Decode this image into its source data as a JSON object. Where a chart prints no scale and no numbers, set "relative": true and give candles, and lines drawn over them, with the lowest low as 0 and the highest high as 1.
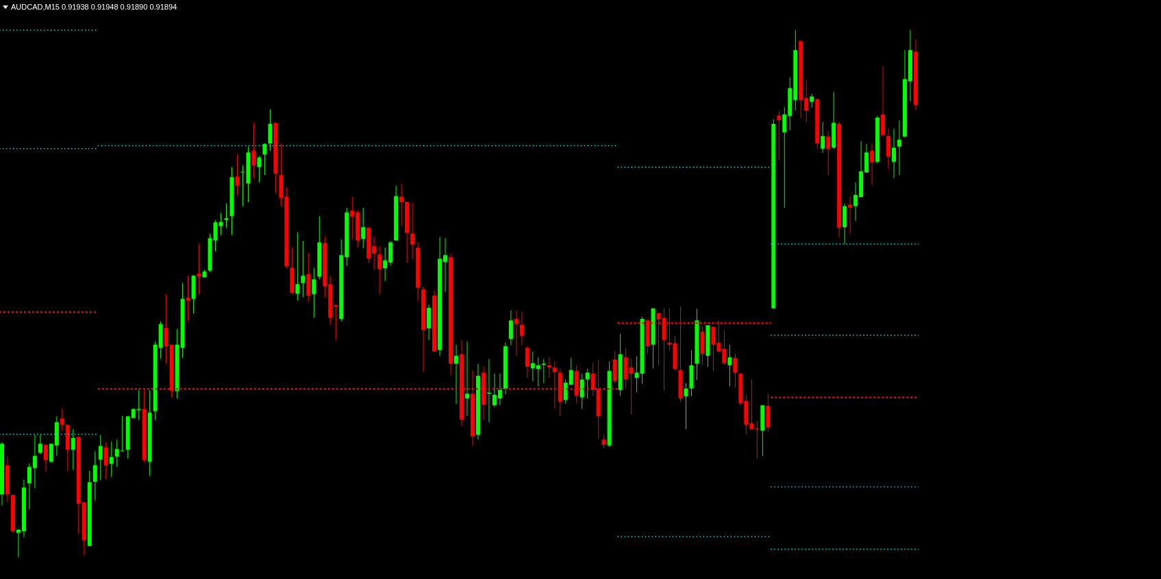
{
  "chart_data": {
    "type": "candlestick",
    "title": "AUDCAD,M15 0.91938 0.91948 0.91890 0.91894",
    "relative": true,
    "categories": [
      null,
      null,
      null,
      null,
      null,
      null,
      null,
      null,
      null,
      null,
      null,
      null,
      null,
      null,
      null,
      null,
      null,
      null,
      null,
      null,
      null,
      null,
      null,
      null,
      null,
      null,
      null,
      null,
      null,
      null,
      null,
      null,
      null,
      null,
      null,
      null,
      null,
      null,
      null,
      null,
      null,
      null,
      null,
      null,
      null,
      null,
      null,
      null,
      null,
      null,
      null,
      null,
      null,
      null,
      null,
      null,
      null,
      null,
      null,
      null,
      null,
      null,
      null,
      null,
      null,
      null,
      null,
      null,
      null,
      null,
      null,
      null,
      null,
      null,
      null,
      null,
      null,
      null,
      null,
      null,
      null,
      null,
      null,
      null,
      null,
      null,
      null,
      null,
      null,
      null,
      null,
      null,
      null,
      null,
      null,
      null,
      null,
      null,
      null,
      null,
      null,
      null,
      null,
      null,
      null,
      null,
      null,
      null,
      null,
      null,
      null,
      null,
      null,
      null,
      null,
      null,
      null,
      null,
      null,
      null,
      null,
      null,
      null,
      null,
      null,
      null,
      null,
      null,
      null,
      null,
      null,
      null,
      null,
      null,
      null,
      null,
      null,
      null,
      null,
      null,
      null,
      null,
      null,
      null,
      null,
      null,
      null,
      null,
      null,
      null,
      null,
      null,
      null,
      null,
      null,
      null,
      null,
      null,
      null,
      null,
      null,
      null,
      null,
      null,
      null,
      null,
      null,
      null
    ],
    "colors": [
      "#00ff00",
      "#ff0000",
      "#ff0000",
      "#00ff00",
      "#00ff00",
      "#00ff00",
      "#00ff00",
      "#00ff00",
      "#ff0000",
      "#00ff00",
      "#00ff00",
      "#ff0000",
      "#ff0000",
      "#00ff00",
      "#ff0000",
      "#ff0000",
      "#00ff00",
      "#00ff00",
      "#00ff00",
      "#ff0000",
      "#00ff00",
      "#00ff00",
      "#00ff00",
      "#00ff00",
      "#00ff00",
      "#00ff00",
      "#ff0000",
      "#00ff00",
      "#00ff00",
      "#00ff00",
      "#ff0000",
      "#ff0000",
      "#00ff00",
      "#00ff00",
      "#ff0000",
      "#00ff00",
      "#ff0000",
      "#00ff00",
      "#00ff00",
      "#00ff00",
      "#00ff00",
      "#00ff00",
      "#00ff00",
      "#ff0000",
      "#00ff00",
      "#00ff00",
      "#ff0000",
      "#00ff00",
      "#00ff00",
      "#00ff00",
      "#ff0000",
      "#ff0000",
      "#ff0000",
      "#ff0000",
      "#00ff00",
      "#00ff00",
      "#ff0000",
      "#00ff00",
      "#00ff00",
      "#ff0000",
      "#ff0000",
      "#ff0000",
      "#00ff00",
      "#00ff00",
      "#ff0000",
      "#ff0000",
      "#00ff00",
      "#ff0000",
      "#ff0000",
      "#ff0000",
      "#00ff00",
      "#00ff00",
      "#00ff00",
      "#ff0000",
      "#ff0000",
      "#ff0000",
      "#ff0000",
      "#ff0000",
      "#00ff00",
      "#ff0000",
      "#00ff00",
      "#00ff00",
      "#ff0000",
      "#00ff00",
      "#ff0000",
      "#00ff00",
      "#ff0000",
      "#00ff00",
      "#ff0000",
      "#00ff00",
      "#00ff00",
      "#00ff00",
      "#00ff00",
      "#00ff00",
      "#ff0000",
      "#ff0000",
      "#ff0000",
      "#00ff00",
      "#00ff00",
      "#00ff00",
      "#ff0000",
      "#ff0000",
      "#ff0000",
      "#00ff00",
      "#00ff00",
      "#ff0000",
      "#00ff00",
      "#00ff00",
      "#ff0000",
      "#ff0000",
      "#ff0000",
      "#00ff00",
      "#ff0000",
      "#00ff00",
      "#ff0000",
      "#ff0000",
      "#00ff00",
      "#00ff00",
      "#ff0000",
      "#00ff00",
      "#ff0000",
      "#ff0000",
      "#ff0000",
      "#ff0000",
      "#ff0000",
      "#00ff00",
      "#00ff00",
      "#00ff00",
      "#ff0000",
      "#00ff00",
      "#ff0000",
      "#ff0000",
      "#ff0000",
      "#00ff00",
      "#ff0000",
      "#ff0000",
      "#ff0000",
      "#ff0000",
      "#ff0000",
      "#00ff00",
      "#ff0000",
      "#00ff00",
      "#ff0000",
      "#00ff00",
      "#00ff00",
      "#00ff00",
      "#ff0000",
      "#ff0000",
      "#00ff00",
      "#ff0000",
      "#00ff00",
      "#ff0000",
      "#00ff00",
      "#ff0000",
      "#00ff00",
      "#ff0000",
      "#00ff00",
      "#00ff00",
      "#00ff00",
      "#ff0000",
      "#00ff00",
      "#ff0000",
      "#ff0000",
      "#00ff00",
      "#00ff00",
      "#00ff00",
      "#00ff00",
      "#ff0000"
    ],
    "ohlc": [
      [
        0.119,
        0.218,
        0.098,
        0.215
      ],
      [
        0.174,
        0.191,
        0.104,
        0.119
      ],
      [
        0.118,
        0.118,
        0.046,
        0.049
      ],
      [
        0.046,
        0.053,
        0,
        0.052
      ],
      [
        0.049,
        0.147,
        0.038,
        0.132
      ],
      [
        0.14,
        0.178,
        0.091,
        0.171
      ],
      [
        0.169,
        0.232,
        0.131,
        0.192
      ],
      [
        0.198,
        0.232,
        0.195,
        0.215
      ],
      [
        0.213,
        0.213,
        0.162,
        0.184
      ],
      [
        0.181,
        0.215,
        0.18,
        0.215
      ],
      [
        0.212,
        0.267,
        0.192,
        0.256
      ],
      [
        0.263,
        0.282,
        0.239,
        0.251
      ],
      [
        0.251,
        0.251,
        0.163,
        0.204
      ],
      [
        0.204,
        0.243,
        0.166,
        0.226
      ],
      [
        0.228,
        0.228,
        0.044,
        0.101
      ],
      [
        0.104,
        0.104,
        0.004,
        0.032
      ],
      [
        0.021,
        0.164,
        0.021,
        0.142
      ],
      [
        0.143,
        0.201,
        0.107,
        0.174
      ],
      [
        0.185,
        0.232,
        0.146,
        0.211
      ],
      [
        0.208,
        0.218,
        0.147,
        0.174
      ],
      [
        0.177,
        0.219,
        0.152,
        0.19
      ],
      [
        0.191,
        0.223,
        0.171,
        0.205
      ],
      [
        0.201,
        0.268,
        0.201,
        0.202
      ],
      [
        0.204,
        0.268,
        0.187,
        0.267
      ],
      [
        0.264,
        0.282,
        0.264,
        0.281
      ],
      [
        0.279,
        0.317,
        0.26,
        0.281
      ],
      [
        0.281,
        0.317,
        0.18,
        0.184
      ],
      [
        0.181,
        0.317,
        0.154,
        0.274
      ],
      [
        0.277,
        0.409,
        0.26,
        0.403
      ],
      [
        0.397,
        0.447,
        0.376,
        0.442
      ],
      [
        0.435,
        0.5,
        0.367,
        0.4
      ],
      [
        0.403,
        0.403,
        0.303,
        0.316
      ],
      [
        0.315,
        0.433,
        0.301,
        0.403
      ],
      [
        0.397,
        0.52,
        0.378,
        0.49
      ],
      [
        0.492,
        0.534,
        0.448,
        0.487
      ],
      [
        0.49,
        0.535,
        0.462,
        0.534
      ],
      [
        0.538,
        0.594,
        0.499,
        0.532
      ],
      [
        0.531,
        0.545,
        0.531,
        0.542
      ],
      [
        0.544,
        0.614,
        0.541,
        0.605
      ],
      [
        0.601,
        0.639,
        0.58,
        0.635
      ],
      [
        0.628,
        0.653,
        0.611,
        0.636
      ],
      [
        0.64,
        0.671,
        0.625,
        0.643
      ],
      [
        0.647,
        0.74,
        0.611,
        0.721
      ],
      [
        0.722,
        0.764,
        0.687,
        0.705
      ],
      [
        0.73,
        0.743,
        0.666,
        0.731
      ],
      [
        0.709,
        0.779,
        0.674,
        0.768
      ],
      [
        0.771,
        0.824,
        0.719,
        0.743
      ],
      [
        0.74,
        0.761,
        0.711,
        0.758
      ],
      [
        0.764,
        0.785,
        0.725,
        0.784
      ],
      [
        0.785,
        0.85,
        0.771,
        0.822
      ],
      [
        0.824,
        0.824,
        0.691,
        0.728
      ],
      [
        0.725,
        0.785,
        0.666,
        0.681
      ],
      [
        0.684,
        0.702,
        0.548,
        0.552
      ],
      [
        0.549,
        0.587,
        0.499,
        0.501
      ],
      [
        0.5,
        0.617,
        0.487,
        0.518
      ],
      [
        0.52,
        0.6,
        0.493,
        0.534
      ],
      [
        0.537,
        0.577,
        0.485,
        0.496
      ],
      [
        0.499,
        0.549,
        0.454,
        0.527
      ],
      [
        0.532,
        0.647,
        0.527,
        0.597
      ],
      [
        0.596,
        0.608,
        0.493,
        0.514
      ],
      [
        0.518,
        0.534,
        0.441,
        0.454
      ],
      [
        0.478,
        0.479,
        0.412,
        0.475
      ],
      [
        0.452,
        0.603,
        0.448,
        0.573
      ],
      [
        0.569,
        0.663,
        0.553,
        0.654
      ],
      [
        0.657,
        0.684,
        0.603,
        0.646
      ],
      [
        0.654,
        0.659,
        0.587,
        0.601
      ],
      [
        0.604,
        0.663,
        0.586,
        0.626
      ],
      [
        0.625,
        0.626,
        0.558,
        0.567
      ],
      [
        0.59,
        0.608,
        0.545,
        0.576
      ],
      [
        0.574,
        0.59,
        0.499,
        0.546
      ],
      [
        0.548,
        0.587,
        0.524,
        0.563
      ],
      [
        0.559,
        0.6,
        0.553,
        0.597
      ],
      [
        0.601,
        0.705,
        0.601,
        0.685
      ],
      [
        0.684,
        0.708,
        0.628,
        0.674
      ],
      [
        0.674,
        0.674,
        0.558,
        0.615
      ],
      [
        0.614,
        0.673,
        0.565,
        0.593
      ],
      [
        0.587,
        0.597,
        0.485,
        0.511
      ],
      [
        0.508,
        0.513,
        0.351,
        0.431
      ],
      [
        0.434,
        0.479,
        0.412,
        0.473
      ],
      [
        0.496,
        0.506,
        0.39,
        0.39
      ],
      [
        0.393,
        0.607,
        0.382,
        0.566
      ],
      [
        0.56,
        0.605,
        0.503,
        0.573
      ],
      [
        0.569,
        0.574,
        0.346,
        0.367
      ],
      [
        0.367,
        0.403,
        0.291,
        0.382
      ],
      [
        0.385,
        0.412,
        0.249,
        0.261
      ],
      [
        0.301,
        0.409,
        0.268,
        0.31
      ],
      [
        0.31,
        0.354,
        0.211,
        0.229
      ],
      [
        0.232,
        0.367,
        0.223,
        0.344
      ],
      [
        0.35,
        0.361,
        0.261,
        0.289
      ],
      [
        0.31,
        0.376,
        0.256,
        0.312
      ],
      [
        0.288,
        0.348,
        0.285,
        0.308
      ],
      [
        0.301,
        0.348,
        0.288,
        0.317
      ],
      [
        0.319,
        0.407,
        0.309,
        0.4
      ],
      [
        0.414,
        0.468,
        0.402,
        0.449
      ],
      [
        0.452,
        0.468,
        0.382,
        0.442
      ],
      [
        0.441,
        0.466,
        0.402,
        0.42
      ],
      [
        0.397,
        0.4,
        0.34,
        0.361
      ],
      [
        0.358,
        0.39,
        0.334,
        0.368
      ],
      [
        0.357,
        0.379,
        0.324,
        0.364
      ],
      [
        0.365,
        0.376,
        0.33,
        0.367
      ],
      [
        0.364,
        0.379,
        0.34,
        0.36
      ],
      [
        0.36,
        0.371,
        0.282,
        0.351
      ],
      [
        0.35,
        0.357,
        0.268,
        0.295
      ],
      [
        0.298,
        0.337,
        0.291,
        0.331
      ],
      [
        0.327,
        0.378,
        0.327,
        0.355
      ],
      [
        0.353,
        0.364,
        0.292,
        0.306
      ],
      [
        0.303,
        0.348,
        0.281,
        0.337
      ],
      [
        0.337,
        0.358,
        0.301,
        0.35
      ],
      [
        0.348,
        0.368,
        0.306,
        0.317
      ],
      [
        0.319,
        0.374,
        0.225,
        0.267
      ],
      [
        0.223,
        0.232,
        0.206,
        0.213
      ],
      [
        0.212,
        0.371,
        0.209,
        0.353
      ],
      [
        0.375,
        0.39,
        0.33,
        0.334
      ],
      [
        0.317,
        0.424,
        0.306,
        0.385
      ],
      [
        0.379,
        0.397,
        0.319,
        0.337
      ],
      [
        0.36,
        0.376,
        0.271,
        0.348
      ],
      [
        0.34,
        0.381,
        0.313,
        0.35
      ],
      [
        0.348,
        0.456,
        0.329,
        0.452
      ],
      [
        0.449,
        0.452,
        0.386,
        0.4
      ],
      [
        0.403,
        0.472,
        0.358,
        0.472
      ],
      [
        0.463,
        0.463,
        0.364,
        0.451
      ],
      [
        0.454,
        0.472,
        0.316,
        0.412
      ],
      [
        0.407,
        0.472,
        0.393,
        0.403
      ],
      [
        0.406,
        0.419,
        0.354,
        0.357
      ],
      [
        0.355,
        0.476,
        0.295,
        0.301
      ],
      [
        0.305,
        0.33,
        0.243,
        0.32
      ],
      [
        0.32,
        0.392,
        0.305,
        0.364
      ],
      [
        0.367,
        0.471,
        0.336,
        0.449
      ],
      [
        0.428,
        0.438,
        0.364,
        0.386
      ],
      [
        0.382,
        0.44,
        0.361,
        0.44
      ],
      [
        0.437,
        0.437,
        0.353,
        0.403
      ],
      [
        0.407,
        0.448,
        0.389,
        0.39
      ],
      [
        0.395,
        0.431,
        0.365,
        0.368
      ],
      [
        0.364,
        0.403,
        0.324,
        0.379
      ],
      [
        0.378,
        0.386,
        0.322,
        0.35
      ],
      [
        0.348,
        0.35,
        0.287,
        0.292
      ],
      [
        0.296,
        0.308,
        0.233,
        0.251
      ],
      [
        0.254,
        0.337,
        0.242,
        0.243
      ],
      [
        0.244,
        0.258,
        0.187,
        0.243
      ],
      [
        0.24,
        0.288,
        0.192,
        0.288
      ],
      [
        0.287,
        0.31,
        0.237,
        0.246
      ],
      [
        0.472,
        0.831,
        0.472,
        0.822
      ],
      [
        0.838,
        0.846,
        0.753,
        0.829
      ],
      [
        0.806,
        0.854,
        0.663,
        0.84
      ],
      [
        0.837,
        0.91,
        0.81,
        0.89
      ],
      [
        0.867,
        1,
        0.848,
        0.962
      ],
      [
        0.979,
        0.979,
        0.833,
        0.867
      ],
      [
        0.871,
        0.906,
        0.826,
        0.847
      ],
      [
        0.864,
        0.879,
        0.853,
        0.874
      ],
      [
        0.869,
        0.871,
        0.775,
        0.785
      ],
      [
        0.775,
        0.826,
        0.767,
        0.799
      ],
      [
        0.798,
        0.808,
        0.725,
        0.774
      ],
      [
        0.777,
        0.883,
        0.774,
        0.824
      ],
      [
        0.822,
        0.826,
        0.608,
        0.625
      ],
      [
        0.626,
        0.671,
        0.594,
        0.666
      ],
      [
        0.669,
        0.684,
        0.614,
        0.663
      ],
      [
        0.666,
        0.711,
        0.638,
        0.687
      ],
      [
        0.683,
        0.789,
        0.683,
        0.732
      ],
      [
        0.73,
        0.784,
        0.73,
        0.768
      ],
      [
        0.771,
        0.784,
        0.706,
        0.749
      ],
      [
        0.75,
        0.837,
        0.747,
        0.834
      ],
      [
        0.84,
        0.931,
        0.798,
        0.801
      ],
      [
        0.799,
        0.813,
        0.736,
        0.76
      ],
      [
        0.75,
        0.813,
        0.719,
        0.777
      ],
      [
        0.779,
        0.829,
        0.725,
        0.792
      ],
      [
        0.798,
        0.962,
        0.796,
        0.907
      ],
      [
        0.903,
        1,
        0.865,
        0.962
      ],
      [
        0.959,
        0.982,
        0.848,
        0.858
      ]
    ],
    "series": [
      {
        "type": "line",
        "color": "#00e0e0",
        "line_style": "dotted",
        "values": [
          1,
          1,
          1,
          1,
          1,
          1,
          1,
          1,
          1,
          1,
          1,
          1,
          1,
          1,
          1,
          1,
          1,
          1,
          0.781,
          0.781,
          0.781,
          0.781,
          0.781,
          0.781,
          0.781,
          0.781,
          0.781,
          0.781,
          0.781,
          0.781,
          0.781,
          0.781,
          0.781,
          0.781,
          0.781,
          0.781,
          0.781,
          0.781,
          0.781,
          0.781,
          0.781,
          0.781,
          0.781,
          0.781,
          0.781,
          0.781,
          0.781,
          0.781,
          0.781,
          0.781,
          0.781,
          0.781,
          0.781,
          0.781,
          0.781,
          0.781,
          0.781,
          0.781,
          0.781,
          0.781,
          0.781,
          0.781,
          0.781,
          0.781,
          0.781,
          0.781,
          0.781,
          0.781,
          0.781,
          0.781,
          0.781,
          0.781,
          0.781,
          0.781,
          0.781,
          0.781,
          0.781,
          0.781,
          0.781,
          0.781,
          0.781,
          0.781,
          0.781,
          0.781,
          0.781,
          0.781,
          0.781,
          0.781,
          0.781,
          0.781,
          0.781,
          0.781,
          0.781,
          0.781,
          0.781,
          0.781,
          0.781,
          0.781,
          0.781,
          0.781,
          0.781,
          0.781,
          0.781,
          0.781,
          0.781,
          0.781,
          0.781,
          0.781,
          0.781,
          0.781,
          0.781,
          0.781,
          0.781,
          0.74,
          0.74,
          0.74,
          0.74,
          0.74,
          0.74,
          0.74,
          0.74,
          0.74,
          0.74,
          0.74,
          0.74,
          0.74,
          0.74,
          0.74,
          0.74,
          0.74,
          0.74,
          0.74,
          0.74,
          0.74,
          0.74,
          0.74,
          0.74,
          0.74,
          0.74,
          0.74,
          0.74,
          0.594,
          0.594,
          0.594,
          0.594,
          0.594,
          0.594,
          0.594,
          0.594,
          0.594,
          0.594,
          0.594,
          0.594,
          0.594,
          0.594,
          0.594,
          0.594,
          0.594,
          0.594,
          0.594,
          0.594,
          0.594,
          0.594,
          0.594,
          0.594,
          0.594,
          0.594,
          0.594
        ]
      },
      {
        "type": "line",
        "color": "#00e0e0",
        "line_style": "dotted",
        "values": [
          0.775,
          0.775,
          0.775,
          0.775,
          0.775,
          0.775,
          0.775,
          0.775,
          0.775,
          0.775,
          0.775,
          0.775,
          0.775,
          0.775,
          0.775,
          0.775,
          0.775,
          0.775,
          null,
          null,
          null,
          null,
          null,
          null,
          null,
          null,
          null,
          null,
          null,
          null,
          null,
          null,
          null,
          null,
          null,
          null,
          null,
          null,
          null,
          null,
          null,
          null,
          null,
          null,
          null,
          null,
          null,
          null,
          null,
          null,
          null,
          null,
          null,
          null,
          null,
          null,
          null,
          null,
          null,
          null,
          null,
          null,
          null,
          null,
          null,
          null,
          null,
          null,
          null,
          null,
          null,
          null,
          null,
          null,
          null,
          null,
          null,
          null,
          null,
          null,
          null,
          null,
          null,
          null,
          null,
          null,
          null,
          null,
          null,
          null,
          null,
          null,
          null,
          null,
          null,
          null,
          null,
          null,
          null,
          null,
          null,
          null,
          null,
          null,
          null,
          null,
          null,
          null,
          null,
          null,
          null,
          null,
          null,
          0.039,
          0.039,
          0.039,
          0.039,
          0.039,
          0.039,
          0.039,
          0.039,
          0.039,
          0.039,
          0.039,
          0.039,
          0.039,
          0.039,
          0.039,
          0.039,
          0.039,
          0.039,
          0.039,
          0.039,
          0.039,
          0.039,
          0.039,
          0.039,
          0.039,
          0.039,
          0.039,
          0.039,
          0.421,
          0.421,
          0.421,
          0.421,
          0.421,
          0.421,
          0.421,
          0.421,
          0.421,
          0.421,
          0.421,
          0.421,
          0.421,
          0.421,
          0.421,
          0.421,
          0.421,
          0.421,
          0.421,
          0.421,
          0.421,
          0.421,
          0.421,
          0.421,
          0.421,
          0.421,
          0.421
        ]
      },
      {
        "type": "line",
        "color": "#00e0e0",
        "line_style": "dotted",
        "values": [
          0.233,
          0.233,
          0.233,
          0.233,
          0.233,
          0.233,
          0.233,
          0.233,
          0.233,
          0.233,
          0.233,
          0.233,
          0.233,
          0.233,
          0.233,
          0.233,
          0.233,
          0.233,
          null,
          null,
          null,
          null,
          null,
          null,
          null,
          null,
          null,
          null,
          null,
          null,
          null,
          null,
          null,
          null,
          null,
          null,
          null,
          null,
          null,
          null,
          null,
          null,
          null,
          null,
          null,
          null,
          null,
          null,
          null,
          null,
          null,
          null,
          null,
          null,
          null,
          null,
          null,
          null,
          null,
          null,
          null,
          null,
          null,
          null,
          null,
          null,
          null,
          null,
          null,
          null,
          null,
          null,
          null,
          null,
          null,
          null,
          null,
          null,
          null,
          null,
          null,
          null,
          null,
          null,
          null,
          null,
          null,
          null,
          null,
          null,
          null,
          null,
          null,
          null,
          null,
          null,
          null,
          null,
          null,
          null,
          null,
          null,
          null,
          null,
          null,
          null,
          null,
          null,
          null,
          null,
          null,
          null,
          null,
          null,
          null,
          null,
          null,
          null,
          null,
          null,
          null,
          null,
          null,
          null,
          null,
          null,
          null,
          null,
          null,
          null,
          null,
          null,
          null,
          null,
          null,
          null,
          null,
          null,
          null,
          null,
          null,
          0.133,
          0.133,
          0.133,
          0.133,
          0.133,
          0.133,
          0.133,
          0.133,
          0.133,
          0.133,
          0.133,
          0.133,
          0.133,
          0.133,
          0.133,
          0.133,
          0.133,
          0.133,
          0.133,
          0.133,
          0.133,
          0.133,
          0.133,
          0.133,
          0.133,
          0.133,
          0.133
        ]
      },
      {
        "type": "line",
        "color": "#00e0e0",
        "line_style": "dotted",
        "values": [
          null,
          null,
          null,
          null,
          null,
          null,
          null,
          null,
          null,
          null,
          null,
          null,
          null,
          null,
          null,
          null,
          null,
          null,
          null,
          null,
          null,
          null,
          null,
          null,
          null,
          null,
          null,
          null,
          null,
          null,
          null,
          null,
          null,
          null,
          null,
          null,
          null,
          null,
          null,
          null,
          null,
          null,
          null,
          null,
          null,
          null,
          null,
          null,
          null,
          null,
          null,
          null,
          null,
          null,
          null,
          null,
          null,
          null,
          null,
          null,
          null,
          null,
          null,
          null,
          null,
          null,
          null,
          null,
          null,
          null,
          null,
          null,
          null,
          null,
          null,
          null,
          null,
          null,
          null,
          null,
          null,
          null,
          null,
          null,
          null,
          null,
          null,
          null,
          null,
          null,
          null,
          null,
          null,
          null,
          null,
          null,
          null,
          null,
          null,
          null,
          null,
          null,
          null,
          null,
          null,
          null,
          null,
          null,
          null,
          null,
          null,
          null,
          null,
          null,
          null,
          null,
          null,
          null,
          null,
          null,
          null,
          null,
          null,
          null,
          null,
          null,
          null,
          null,
          null,
          null,
          null,
          null,
          null,
          null,
          null,
          null,
          null,
          null,
          null,
          null,
          null,
          0.015,
          0.015,
          0.015,
          0.015,
          0.015,
          0.015,
          0.015,
          0.015,
          0.015,
          0.015,
          0.015,
          0.015,
          0.015,
          0.015,
          0.015,
          0.015,
          0.015,
          0.015,
          0.015,
          0.015,
          0.015,
          0.015,
          0.015,
          0.015,
          0.015,
          0.015,
          0.015
        ]
      },
      {
        "type": "line",
        "color": "#ff0000",
        "line_style": "dashed",
        "values": [
          0.465,
          0.465,
          0.465,
          0.465,
          0.465,
          0.465,
          0.465,
          0.465,
          0.465,
          0.465,
          0.465,
          0.465,
          0.465,
          0.465,
          0.465,
          0.465,
          0.465,
          0.465,
          0.319,
          0.319,
          0.319,
          0.319,
          0.319,
          0.319,
          0.319,
          0.319,
          0.319,
          0.319,
          0.319,
          0.319,
          0.319,
          0.319,
          0.319,
          0.319,
          0.319,
          0.319,
          0.319,
          0.319,
          0.319,
          0.319,
          0.319,
          0.319,
          0.319,
          0.319,
          0.319,
          0.319,
          0.319,
          0.319,
          0.319,
          0.319,
          0.319,
          0.319,
          0.319,
          0.319,
          0.319,
          0.319,
          0.319,
          0.319,
          0.319,
          0.319,
          0.319,
          0.319,
          0.319,
          0.319,
          0.319,
          0.319,
          0.319,
          0.319,
          0.319,
          0.319,
          0.319,
          0.319,
          0.319,
          0.319,
          0.319,
          0.319,
          0.319,
          0.319,
          0.319,
          0.319,
          0.319,
          0.319,
          0.319,
          0.319,
          0.319,
          0.319,
          0.319,
          0.319,
          0.319,
          0.319,
          0.319,
          0.319,
          0.319,
          0.319,
          0.319,
          0.319,
          0.319,
          0.319,
          0.319,
          0.319,
          0.319,
          0.319,
          0.319,
          0.319,
          0.319,
          0.319,
          0.319,
          0.319,
          0.319,
          0.319,
          0.319,
          0.319,
          0.319,
          0.444,
          0.444,
          0.444,
          0.444,
          0.444,
          0.444,
          0.444,
          0.444,
          0.444,
          0.444,
          0.444,
          0.444,
          0.444,
          0.444,
          0.444,
          0.444,
          0.444,
          0.444,
          0.444,
          0.444,
          0.444,
          0.444,
          0.444,
          0.444,
          0.444,
          0.444,
          0.444,
          0.444,
          0.303,
          0.303,
          0.303,
          0.303,
          0.303,
          0.303,
          0.303,
          0.303,
          0.303,
          0.303,
          0.303,
          0.303,
          0.303,
          0.303,
          0.303,
          0.303,
          0.303,
          0.303,
          0.303,
          0.303,
          0.303,
          0.303,
          0.303,
          0.303,
          0.303,
          0.303,
          0.303
        ]
      }
    ]
  }
}
